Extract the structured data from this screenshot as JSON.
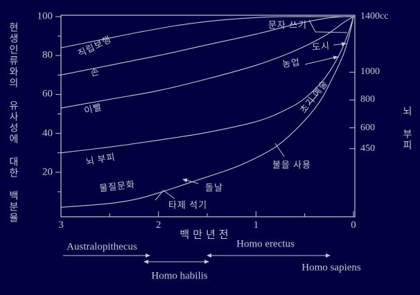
{
  "figure": {
    "background_color": "#01013f",
    "line_color": "#c6c8d6"
  },
  "axes": {
    "x_label": "백만년전",
    "y_left_label": "현생인류와의 유사성에 대한 백분율",
    "y_right_label": "뇌 부피"
  },
  "curve_labels": {
    "bipedal": "직립보행",
    "hand": "손",
    "teeth": "이빨",
    "brain": "뇌 부피",
    "material": "물질문화"
  },
  "events": {
    "stone_tools": "타제 석기",
    "blade": "돌날",
    "fire": "불을 사용",
    "early_art": "초기 예술",
    "agriculture": "농업",
    "city": "도시",
    "writing": "문자 쓰기"
  },
  "species": {
    "australopithecus": "Australopithecus",
    "habilis": "Homo habilis",
    "erectus": "Homo erectus",
    "sapiens": "Homo sapiens"
  },
  "chart_data": {
    "type": "line",
    "title": "",
    "xlabel": "백만년전",
    "ylabel_left": "현생인류와의 유사성에 대한 백분율",
    "ylabel_right": "뇌 부피",
    "x_range": [
      3,
      0
    ],
    "x_ticks": [
      3,
      2,
      1,
      0
    ],
    "x_minor_ticks": [
      2.5,
      1.5,
      0.5
    ],
    "y_left_range": [
      0,
      100
    ],
    "y_left_ticks": [
      100,
      80,
      60,
      40,
      20
    ],
    "y_left_minor_ticks": [
      90,
      70,
      50,
      30,
      10
    ],
    "y_right_unit": "cc",
    "y_right_max": 1400,
    "y_right_ticks": [
      1400,
      1000,
      800,
      600,
      450
    ],
    "y_right_tick_labels": [
      "1400cc",
      "1000",
      "800",
      "600",
      "450"
    ],
    "series": [
      {
        "name": "직립보행",
        "points": [
          [
            3,
            84
          ],
          [
            2.6,
            88
          ],
          [
            2.2,
            92
          ],
          [
            1.8,
            95.5
          ],
          [
            1.4,
            98
          ],
          [
            1.0,
            99.5
          ],
          [
            0.7,
            100
          ],
          [
            0.35,
            100
          ],
          [
            0,
            100
          ]
        ]
      },
      {
        "name": "손",
        "points": [
          [
            3,
            70
          ],
          [
            2.5,
            75
          ],
          [
            2,
            80
          ],
          [
            1.5,
            85.5
          ],
          [
            1,
            91
          ],
          [
            0.6,
            96
          ],
          [
            0.3,
            99
          ],
          [
            0.1,
            100
          ],
          [
            0,
            100
          ]
        ]
      },
      {
        "name": "이빨",
        "points": [
          [
            3,
            53
          ],
          [
            2.5,
            57.5
          ],
          [
            2,
            62
          ],
          [
            1.5,
            68
          ],
          [
            1,
            75
          ],
          [
            0.6,
            82.5
          ],
          [
            0.3,
            90
          ],
          [
            0.1,
            97
          ],
          [
            0,
            100
          ]
        ]
      },
      {
        "name": "뇌 부피",
        "points": [
          [
            3,
            30
          ],
          [
            2.5,
            33
          ],
          [
            2,
            36.5
          ],
          [
            1.5,
            40.5
          ],
          [
            1,
            46
          ],
          [
            0.7,
            52
          ],
          [
            0.5,
            58
          ],
          [
            0.3,
            68
          ],
          [
            0.15,
            80
          ],
          [
            0.05,
            92
          ],
          [
            0,
            100
          ]
        ]
      },
      {
        "name": "물질문화",
        "points": [
          [
            3,
            2
          ],
          [
            2.5,
            4
          ],
          [
            2.2,
            6.5
          ],
          [
            1.9,
            11
          ],
          [
            1.6,
            16
          ],
          [
            1.3,
            21
          ],
          [
            1.1,
            25
          ],
          [
            0.8,
            33
          ],
          [
            0.55,
            44
          ],
          [
            0.35,
            56
          ],
          [
            0.2,
            70
          ],
          [
            0.1,
            81
          ],
          [
            0.04,
            91
          ],
          [
            0,
            100
          ]
        ]
      }
    ],
    "events_on_material_culture_curve": [
      {
        "label": "타제 석기",
        "x_mya": 2.0
      },
      {
        "label": "돌날",
        "x_mya": 1.75
      },
      {
        "label": "불을 사용",
        "x_mya": 0.8
      },
      {
        "label": "초기 예술",
        "x_mya": 0.4
      },
      {
        "label": "농업",
        "x_mya": 0.15
      },
      {
        "label": "도시",
        "x_mya": 0.07
      },
      {
        "label": "문자 쓰기",
        "x_mya": 0.02
      }
    ],
    "species_ranges_mya": [
      {
        "name": "Australopithecus",
        "from": 3.0,
        "to": 2.1
      },
      {
        "name": "Homo habilis",
        "from": 2.15,
        "to": 1.45
      },
      {
        "name": "Homo erectus",
        "from": 1.5,
        "to": 0.25
      },
      {
        "name": "Homo sapiens",
        "from": 0.25,
        "to": 0
      }
    ]
  }
}
